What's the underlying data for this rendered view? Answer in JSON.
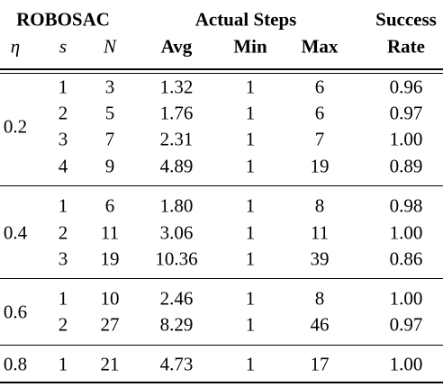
{
  "table": {
    "header": {
      "group_robosac": "ROBOSAC",
      "group_actual_steps": "Actual Steps",
      "group_success": "Success",
      "col_eta": "η",
      "col_s": "s",
      "col_n": "N",
      "col_avg": "Avg",
      "col_min": "Min",
      "col_max": "Max",
      "col_rate": "Rate"
    },
    "groups": [
      {
        "eta": "0.2",
        "rows": [
          {
            "s": "1",
            "n": "3",
            "avg": "1.32",
            "min": "1",
            "max": "6",
            "rate": "0.96"
          },
          {
            "s": "2",
            "n": "5",
            "avg": "1.76",
            "min": "1",
            "max": "6",
            "rate": "0.97"
          },
          {
            "s": "3",
            "n": "7",
            "avg": "2.31",
            "min": "1",
            "max": "7",
            "rate": "1.00"
          },
          {
            "s": "4",
            "n": "9",
            "avg": "4.89",
            "min": "1",
            "max": "19",
            "rate": "0.89"
          }
        ]
      },
      {
        "eta": "0.4",
        "rows": [
          {
            "s": "1",
            "n": "6",
            "avg": "1.80",
            "min": "1",
            "max": "8",
            "rate": "0.98"
          },
          {
            "s": "2",
            "n": "11",
            "avg": "3.06",
            "min": "1",
            "max": "11",
            "rate": "1.00"
          },
          {
            "s": "3",
            "n": "19",
            "avg": "10.36",
            "min": "1",
            "max": "39",
            "rate": "0.86"
          }
        ]
      },
      {
        "eta": "0.6",
        "rows": [
          {
            "s": "1",
            "n": "10",
            "avg": "2.46",
            "min": "1",
            "max": "8",
            "rate": "1.00"
          },
          {
            "s": "2",
            "n": "27",
            "avg": "8.29",
            "min": "1",
            "max": "46",
            "rate": "0.97"
          }
        ]
      },
      {
        "eta": "0.8",
        "rows": [
          {
            "s": "1",
            "n": "21",
            "avg": "4.73",
            "min": "1",
            "max": "17",
            "rate": "1.00"
          }
        ]
      }
    ]
  }
}
